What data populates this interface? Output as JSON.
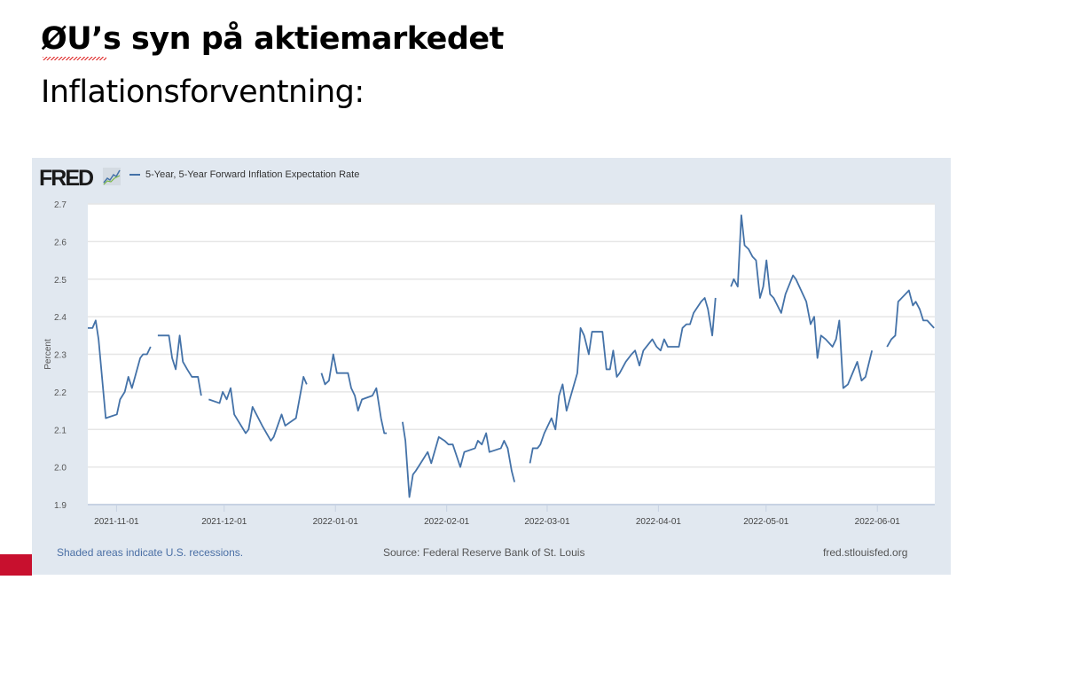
{
  "slide": {
    "title": "ØU’s syn på aktiemarkedet",
    "subtitle": "Inflationsforventning:"
  },
  "fred": {
    "logo": "FRED",
    "footer_left": "Shaded areas indicate U.S. recessions.",
    "footer_mid": "Source: Federal Reserve Bank of St. Louis",
    "footer_right": "fred.stlouisfed.org"
  },
  "chart_data": {
    "type": "line",
    "title": "",
    "legend": [
      "5-Year, 5-Year Forward Inflation Expectation Rate"
    ],
    "legend_placement": "top-left",
    "xlabel": "",
    "ylabel": "Percent",
    "x_unit": "days since 2021-11-01",
    "xlim": [
      -8,
      228
    ],
    "ylim": [
      1.9,
      2.7
    ],
    "yticks": [
      1.9,
      2.0,
      2.1,
      2.2,
      2.3,
      2.4,
      2.5,
      2.6,
      2.7
    ],
    "ytick_labels": [
      "1.9",
      "2.0",
      "2.1",
      "2.2",
      "2.3",
      "2.4",
      "2.5",
      "2.6",
      "2.7"
    ],
    "xticks": [
      0,
      30,
      61,
      92,
      120,
      151,
      181,
      212
    ],
    "xtick_labels": [
      "2021-11-01",
      "2021-12-01",
      "2022-01-01",
      "2022-02-01",
      "2022-03-01",
      "2022-04-01",
      "2022-05-01",
      "2022-06-01"
    ],
    "grid": true,
    "color": "#4472a8",
    "series": [
      {
        "name": "5-Year, 5-Year Forward Inflation Expectation Rate",
        "segments": [
          [
            [
              -8,
              2.37
            ],
            [
              -6.7,
              2.37
            ],
            [
              -5.8,
              2.39
            ],
            [
              -5,
              2.34
            ],
            [
              -3,
              2.13
            ],
            [
              0.1,
              2.14
            ],
            [
              1,
              2.18
            ],
            [
              2.3,
              2.2
            ],
            [
              3.3,
              2.24
            ],
            [
              4.3,
              2.21
            ],
            [
              6.6,
              2.29
            ],
            [
              7.4,
              2.3
            ],
            [
              8.5,
              2.3
            ],
            [
              9.5,
              2.32
            ]
          ],
          [
            [
              11.5,
              2.35
            ],
            [
              14.6,
              2.35
            ],
            [
              15.5,
              2.29
            ],
            [
              16.5,
              2.26
            ],
            [
              17.6,
              2.35
            ],
            [
              18.5,
              2.28
            ],
            [
              19.7,
              2.26
            ],
            [
              21,
              2.24
            ],
            [
              22.7,
              2.24
            ],
            [
              23.6,
              2.19
            ]
          ],
          [
            [
              25.7,
              2.18
            ],
            [
              28.7,
              2.17
            ],
            [
              29.6,
              2.2
            ],
            [
              30.7,
              2.18
            ],
            [
              31.8,
              2.21
            ],
            [
              32.8,
              2.14
            ],
            [
              36,
              2.09
            ],
            [
              36.8,
              2.1
            ],
            [
              37.9,
              2.16
            ],
            [
              40.6,
              2.11
            ],
            [
              43,
              2.07
            ],
            [
              43.8,
              2.08
            ],
            [
              46,
              2.14
            ],
            [
              47,
              2.11
            ],
            [
              50,
              2.13
            ],
            [
              52.1,
              2.24
            ],
            [
              53,
              2.22
            ]
          ],
          [
            [
              57.1,
              2.25
            ],
            [
              58.1,
              2.22
            ],
            [
              59.2,
              2.23
            ],
            [
              60.4,
              2.3
            ],
            [
              61.4,
              2.25
            ],
            [
              64.5,
              2.25
            ],
            [
              65.4,
              2.21
            ],
            [
              66.4,
              2.19
            ],
            [
              67.3,
              2.15
            ],
            [
              68.4,
              2.18
            ],
            [
              71.3,
              2.19
            ],
            [
              72.4,
              2.21
            ],
            [
              73.7,
              2.13
            ],
            [
              74.6,
              2.09
            ],
            [
              75.3,
              2.09
            ]
          ],
          [
            [
              79.7,
              2.12
            ],
            [
              80.5,
              2.07
            ],
            [
              81.6,
              1.92
            ],
            [
              82.6,
              1.98
            ],
            [
              83.4,
              1.99
            ],
            [
              85.4,
              2.02
            ],
            [
              86.7,
              2.04
            ],
            [
              87.7,
              2.01
            ],
            [
              89.8,
              2.08
            ],
            [
              91.4,
              2.07
            ],
            [
              92.5,
              2.06
            ],
            [
              93.7,
              2.06
            ],
            [
              95.8,
              2.0
            ],
            [
              96.9,
              2.04
            ],
            [
              99.9,
              2.05
            ],
            [
              100.7,
              2.07
            ],
            [
              101.8,
              2.06
            ],
            [
              103,
              2.09
            ],
            [
              103.9,
              2.04
            ],
            [
              107.1,
              2.05
            ],
            [
              108,
              2.07
            ],
            [
              109,
              2.05
            ],
            [
              110.1,
              1.99
            ],
            [
              110.9,
              1.96
            ]
          ],
          [
            [
              115.2,
              2.01
            ],
            [
              116,
              2.05
            ],
            [
              117.3,
              2.05
            ],
            [
              118.1,
              2.06
            ],
            [
              119.2,
              2.09
            ],
            [
              121.2,
              2.13
            ],
            [
              122.3,
              2.1
            ],
            [
              123.3,
              2.19
            ],
            [
              124.3,
              2.22
            ],
            [
              125.4,
              2.15
            ],
            [
              127.2,
              2.21
            ],
            [
              128.4,
              2.25
            ],
            [
              129.3,
              2.37
            ],
            [
              130.3,
              2.35
            ],
            [
              131.6,
              2.3
            ],
            [
              132.5,
              2.36
            ],
            [
              135.4,
              2.36
            ],
            [
              136.5,
              2.26
            ],
            [
              137.5,
              2.26
            ],
            [
              138.4,
              2.31
            ],
            [
              139.4,
              2.24
            ],
            [
              140.2,
              2.25
            ],
            [
              141.9,
              2.28
            ],
            [
              143.5,
              2.3
            ],
            [
              144.5,
              2.31
            ],
            [
              145.7,
              2.27
            ],
            [
              146.8,
              2.31
            ],
            [
              149.3,
              2.34
            ],
            [
              150.5,
              2.32
            ],
            [
              151.6,
              2.31
            ],
            [
              152.6,
              2.34
            ],
            [
              153.6,
              2.32
            ],
            [
              156.7,
              2.32
            ],
            [
              157.7,
              2.37
            ],
            [
              158.8,
              2.38
            ],
            [
              159.8,
              2.38
            ],
            [
              160.8,
              2.41
            ],
            [
              162.9,
              2.44
            ],
            [
              163.9,
              2.45
            ],
            [
              164.8,
              2.42
            ],
            [
              166,
              2.35
            ],
            [
              166.9,
              2.45
            ]
          ],
          [
            [
              171.2,
              2.48
            ],
            [
              172,
              2.5
            ],
            [
              173.1,
              2.48
            ],
            [
              174.1,
              2.67
            ],
            [
              175,
              2.59
            ],
            [
              176.1,
              2.58
            ],
            [
              177.2,
              2.56
            ],
            [
              178.2,
              2.55
            ],
            [
              179.3,
              2.45
            ],
            [
              180.2,
              2.48
            ],
            [
              181.1,
              2.55
            ],
            [
              182.1,
              2.46
            ],
            [
              183.1,
              2.45
            ],
            [
              185.2,
              2.41
            ],
            [
              186.4,
              2.46
            ],
            [
              188.5,
              2.51
            ],
            [
              189.3,
              2.5
            ],
            [
              192.2,
              2.44
            ],
            [
              193.4,
              2.38
            ],
            [
              194.4,
              2.4
            ],
            [
              195.3,
              2.29
            ],
            [
              196.3,
              2.35
            ],
            [
              197.6,
              2.34
            ],
            [
              199.5,
              2.32
            ],
            [
              200.5,
              2.34
            ],
            [
              201.4,
              2.39
            ],
            [
              202.5,
              2.21
            ],
            [
              203.8,
              2.22
            ],
            [
              206.4,
              2.28
            ],
            [
              207.6,
              2.23
            ],
            [
              208.7,
              2.24
            ],
            [
              210.5,
              2.31
            ]
          ],
          [
            [
              214.7,
              2.32
            ],
            [
              215.9,
              2.34
            ],
            [
              217,
              2.35
            ],
            [
              217.8,
              2.44
            ],
            [
              218.8,
              2.45
            ],
            [
              220.8,
              2.47
            ],
            [
              221.9,
              2.43
            ],
            [
              222.7,
              2.44
            ],
            [
              223.8,
              2.42
            ],
            [
              224.8,
              2.39
            ],
            [
              225.9,
              2.39
            ],
            [
              227.8,
              2.37
            ]
          ]
        ]
      }
    ]
  }
}
